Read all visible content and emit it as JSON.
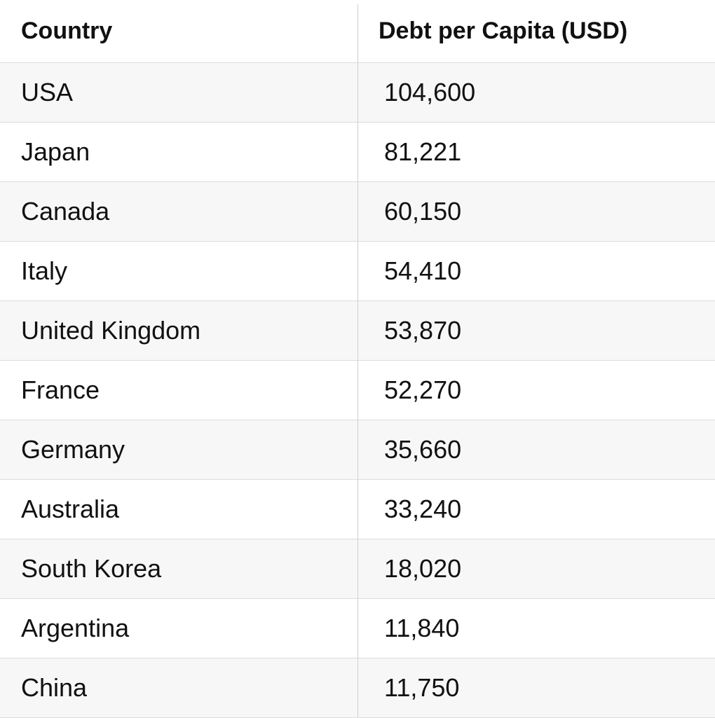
{
  "table": {
    "header": [
      "Country",
      "Debt per Capita (USD)"
    ],
    "rows": [
      [
        "USA",
        "104,600"
      ],
      [
        "Japan",
        "81,221"
      ],
      [
        "Canada",
        "60,150"
      ],
      [
        "Italy",
        "54,410"
      ],
      [
        "United Kingdom",
        "53,870"
      ],
      [
        "France",
        "52,270"
      ],
      [
        "Germany",
        "35,660"
      ],
      [
        "Australia",
        "33,240"
      ],
      [
        "South Korea",
        "18,020"
      ],
      [
        "Argentina",
        "11,840"
      ],
      [
        "China",
        "11,750"
      ]
    ]
  }
}
